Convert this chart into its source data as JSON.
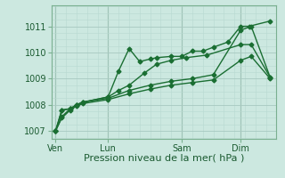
{
  "bg_color": "#cce8e0",
  "grid_color_major": "#a8c8c0",
  "grid_color_minor": "#b8d8d0",
  "line_color": "#1a6e32",
  "marker_color": "#1a6e32",
  "xlabel": "Pression niveau de la mer( hPa )",
  "xlabel_fontsize": 8,
  "ylim": [
    1006.7,
    1011.8
  ],
  "yticks": [
    1007,
    1008,
    1009,
    1010,
    1011
  ],
  "xlim": [
    -0.2,
    10.5
  ],
  "xtick_labels": [
    "Ven",
    "Lun",
    "Sam",
    "Dim"
  ],
  "xtick_positions": [
    0.0,
    2.5,
    6.0,
    8.8
  ],
  "vline_positions": [
    0.0,
    2.5,
    6.0,
    8.8
  ],
  "series": [
    {
      "x": [
        0.0,
        0.3,
        0.7,
        1.0,
        1.3,
        2.5,
        3.0,
        3.5,
        4.0,
        4.5,
        4.8,
        5.5,
        6.0,
        6.5,
        7.0,
        7.5,
        8.2,
        8.8,
        9.2,
        10.2
      ],
      "y": [
        1007.0,
        1007.8,
        1007.85,
        1008.0,
        1008.1,
        1008.3,
        1009.3,
        1010.15,
        1009.65,
        1009.75,
        1009.8,
        1009.85,
        1009.85,
        1010.05,
        1010.05,
        1010.2,
        1010.4,
        1011.0,
        1011.0,
        1011.2
      ],
      "marker": "D",
      "markersize": 2.5,
      "linewidth": 1.0
    },
    {
      "x": [
        0.0,
        0.3,
        0.7,
        1.0,
        1.3,
        2.5,
        3.0,
        3.5,
        4.2,
        4.8,
        5.5,
        6.2,
        7.2,
        8.8,
        9.3,
        10.2
      ],
      "y": [
        1007.0,
        1007.8,
        1007.85,
        1008.0,
        1008.1,
        1008.3,
        1008.55,
        1008.75,
        1009.2,
        1009.55,
        1009.7,
        1009.8,
        1009.9,
        1010.3,
        1010.3,
        1009.05
      ],
      "marker": "D",
      "markersize": 2.5,
      "linewidth": 1.0
    },
    {
      "x": [
        0.0,
        0.3,
        0.7,
        1.0,
        1.3,
        2.5,
        3.5,
        4.5,
        5.5,
        6.5,
        7.5,
        8.8,
        9.3,
        10.2
      ],
      "y": [
        1007.0,
        1007.55,
        1007.85,
        1008.0,
        1008.1,
        1008.25,
        1008.55,
        1008.75,
        1008.9,
        1009.0,
        1009.15,
        1010.85,
        1011.0,
        1009.05
      ],
      "marker": "D",
      "markersize": 2.5,
      "linewidth": 1.0
    },
    {
      "x": [
        0.0,
        0.3,
        0.7,
        1.0,
        1.3,
        2.5,
        3.5,
        4.5,
        5.5,
        6.5,
        7.5,
        8.8,
        9.3,
        10.2
      ],
      "y": [
        1007.0,
        1007.5,
        1007.8,
        1007.95,
        1008.05,
        1008.2,
        1008.42,
        1008.6,
        1008.75,
        1008.85,
        1008.95,
        1009.7,
        1009.85,
        1009.0
      ],
      "marker": "D",
      "markersize": 2.5,
      "linewidth": 1.0
    }
  ]
}
